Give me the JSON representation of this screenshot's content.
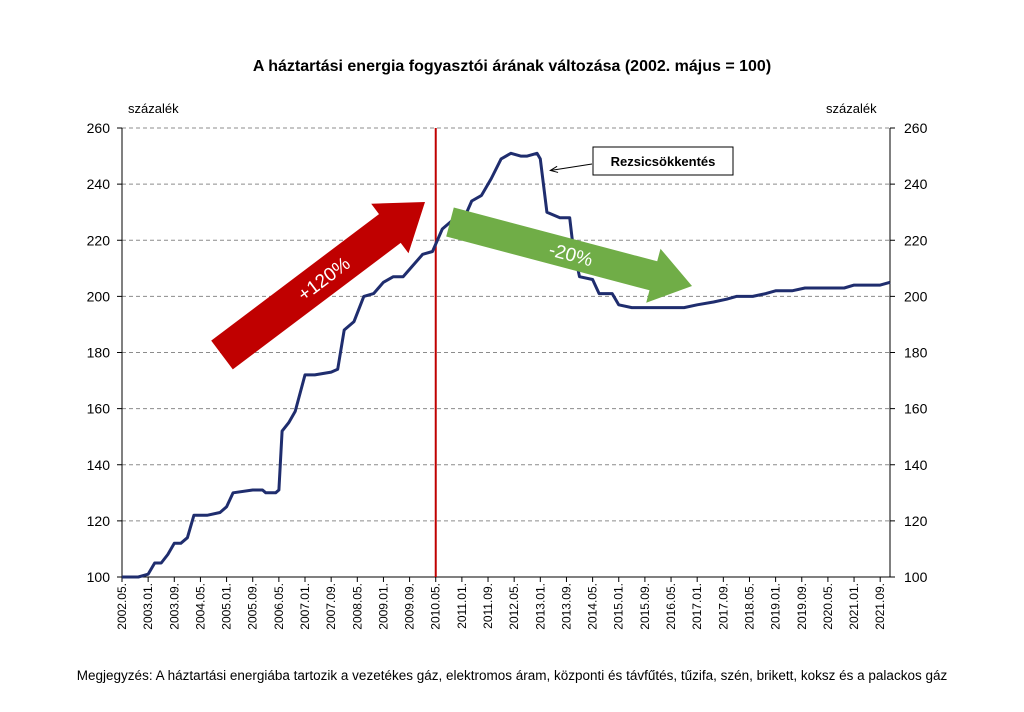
{
  "chart_data": {
    "type": "line",
    "title": "A háztartási energia fogyasztói árának változása (2002. május = 100)",
    "ylabel_left": "százalék",
    "ylabel_right": "százalék",
    "ylim": [
      100,
      260
    ],
    "yticks": [
      100,
      120,
      140,
      160,
      180,
      200,
      220,
      240,
      260
    ],
    "grid": true,
    "x_tick_labels": [
      "2002.05.",
      "2003.01.",
      "2003.09.",
      "2004.05.",
      "2005.01.",
      "2005.09.",
      "2006.05.",
      "2007.01.",
      "2007.09.",
      "2008.05.",
      "2009.01.",
      "2009.09.",
      "2010.05.",
      "2011.01.",
      "2011.09.",
      "2012.05.",
      "2013.01.",
      "2013.09.",
      "2014.05.",
      "2015.01.",
      "2015.09.",
      "2016.05.",
      "2017.01.",
      "2017.09.",
      "2018.05.",
      "2019.01.",
      "2019.09.",
      "2020.05.",
      "2021.01.",
      "2021.09."
    ],
    "x_start": "2002.05.",
    "x_end": "2021.12.",
    "series": [
      {
        "color": "#1f2d6e",
        "points": [
          [
            "2002.05.",
            100
          ],
          [
            "2002.10.",
            100
          ],
          [
            "2003.01.",
            101
          ],
          [
            "2003.03.",
            105
          ],
          [
            "2003.05.",
            105
          ],
          [
            "2003.07.",
            108
          ],
          [
            "2003.09.",
            112
          ],
          [
            "2003.11.",
            112
          ],
          [
            "2004.01.",
            114
          ],
          [
            "2004.03.",
            122
          ],
          [
            "2004.07.",
            122
          ],
          [
            "2004.11.",
            123
          ],
          [
            "2005.01.",
            125
          ],
          [
            "2005.03.",
            130
          ],
          [
            "2005.09.",
            131
          ],
          [
            "2005.12.",
            131
          ],
          [
            "2006.01.",
            130
          ],
          [
            "2006.04.",
            130
          ],
          [
            "2006.05.",
            131
          ],
          [
            "2006.06.",
            152
          ],
          [
            "2006.08.",
            155
          ],
          [
            "2006.10.",
            159
          ],
          [
            "2007.01.",
            172
          ],
          [
            "2007.04.",
            172
          ],
          [
            "2007.09.",
            173
          ],
          [
            "2007.11.",
            174
          ],
          [
            "2008.01.",
            188
          ],
          [
            "2008.04.",
            191
          ],
          [
            "2008.07.",
            200
          ],
          [
            "2008.10.",
            201
          ],
          [
            "2009.01.",
            205
          ],
          [
            "2009.04.",
            207
          ],
          [
            "2009.07.",
            207
          ],
          [
            "2009.10.",
            211
          ],
          [
            "2010.01.",
            215
          ],
          [
            "2010.04.",
            216
          ],
          [
            "2010.07.",
            224
          ],
          [
            "2010.10.",
            227
          ],
          [
            "2011.01.",
            226
          ],
          [
            "2011.04.",
            234
          ],
          [
            "2011.07.",
            236
          ],
          [
            "2011.10.",
            242
          ],
          [
            "2012.01.",
            249
          ],
          [
            "2012.04.",
            251
          ],
          [
            "2012.07.",
            250
          ],
          [
            "2012.09.",
            250
          ],
          [
            "2012.12.",
            251
          ],
          [
            "2013.01.",
            249
          ],
          [
            "2013.03.",
            230
          ],
          [
            "2013.07.",
            228
          ],
          [
            "2013.10.",
            228
          ],
          [
            "2013.11.",
            218
          ],
          [
            "2014.01.",
            207
          ],
          [
            "2014.05.",
            206
          ],
          [
            "2014.07.",
            201
          ],
          [
            "2014.11.",
            201
          ],
          [
            "2015.01.",
            197
          ],
          [
            "2015.05.",
            196
          ],
          [
            "2015.09.",
            196
          ],
          [
            "2016.05.",
            196
          ],
          [
            "2016.09.",
            196
          ],
          [
            "2017.01.",
            197
          ],
          [
            "2017.06.",
            198
          ],
          [
            "2017.10.",
            199
          ],
          [
            "2018.01.",
            200
          ],
          [
            "2018.06.",
            200
          ],
          [
            "2018.10.",
            201
          ],
          [
            "2019.01.",
            202
          ],
          [
            "2019.06.",
            202
          ],
          [
            "2019.10.",
            203
          ],
          [
            "2020.06.",
            203
          ],
          [
            "2020.10.",
            203
          ],
          [
            "2021.01.",
            204
          ],
          [
            "2021.06.",
            204
          ],
          [
            "2021.09.",
            204
          ],
          [
            "2021.12.",
            205
          ]
        ]
      }
    ],
    "marker_line": {
      "x": "2010.05.",
      "color": "#c00000"
    },
    "annotations": {
      "callout": {
        "text": "Rezsicsökkentés",
        "points_to": [
          "2013.01.",
          247
        ]
      },
      "up_arrow": {
        "text": "+120%",
        "color": "#c00000"
      },
      "down_arrow": {
        "text": "-20%",
        "color": "#70ad47"
      }
    }
  },
  "footnote": "Megjegyzés: A háztartási energiába tartozik a vezetékes gáz, elektromos áram, központi és távfűtés, tűzifa, szén, brikett, koksz és a palackos gáz"
}
